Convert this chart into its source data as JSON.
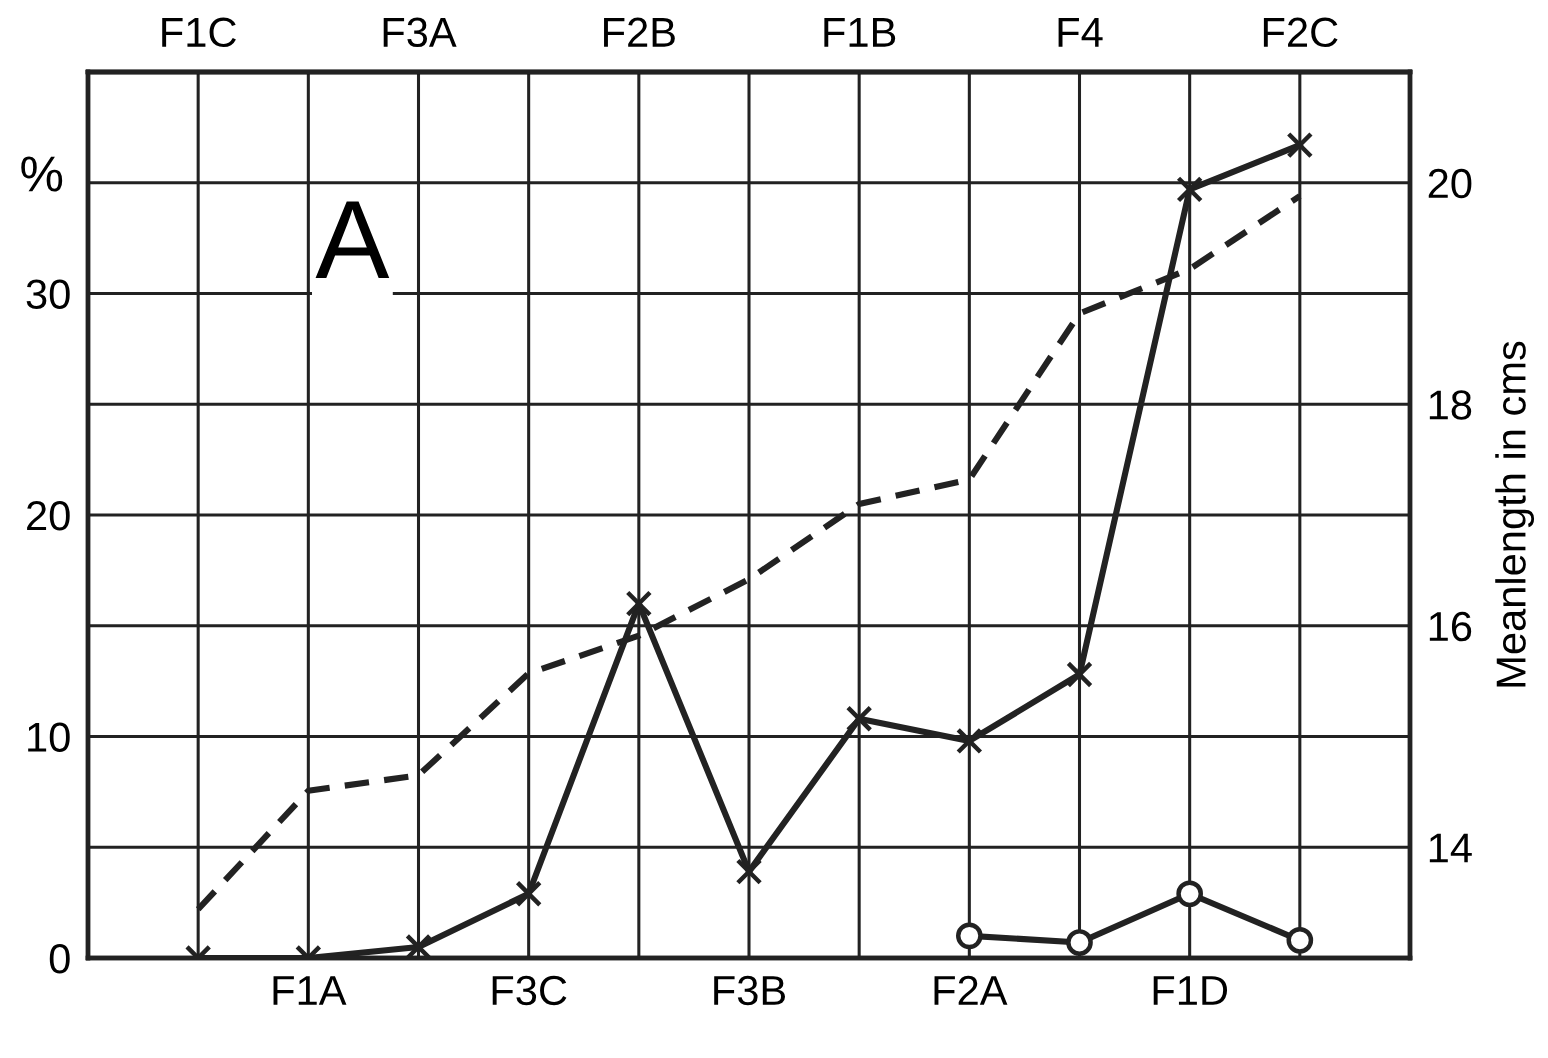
{
  "chart_data": {
    "type": "line",
    "ylabel": "%",
    "y2label": "Meanlength in cms",
    "annotations": [
      "A"
    ],
    "categories": [
      "F1C",
      "F1A",
      "F3A",
      "F3C",
      "F2B",
      "F3B",
      "F1B",
      "F2A",
      "F4",
      "F1D",
      "F2C"
    ],
    "series": [
      {
        "color": "#222222",
        "marker": "cross",
        "line_style": "solid",
        "values": [
          0,
          0,
          0.5,
          2.9,
          16.0,
          3.9,
          10.8,
          9.8,
          12.8,
          34.7,
          36.7
        ]
      },
      {
        "color": "#222222",
        "marker": "circle",
        "line_style": "solid",
        "values": [
          null,
          null,
          null,
          null,
          null,
          null,
          null,
          1.0,
          0.7,
          2.9,
          0.8
        ]
      },
      {
        "color": "#222222",
        "marker": "none",
        "line_style": "dashed",
        "axis": "y2",
        "values": [
          13.44,
          14.51,
          14.65,
          15.57,
          15.91,
          16.42,
          17.1,
          17.32,
          18.82,
          19.22,
          19.88
        ]
      }
    ],
    "ylim": [
      0,
      40
    ],
    "yticks": [
      0,
      {
        "value": 5,
        "label": null
      },
      10,
      {
        "value": 15,
        "label": null
      },
      20,
      {
        "value": 25,
        "label": null
      },
      30,
      {
        "value": 35,
        "label": null
      },
      {
        "value": 40,
        "label": null
      }
    ],
    "y2lim": [
      13,
      21
    ],
    "y2ticks": [
      14,
      16,
      18,
      20
    ],
    "grid": true
  }
}
